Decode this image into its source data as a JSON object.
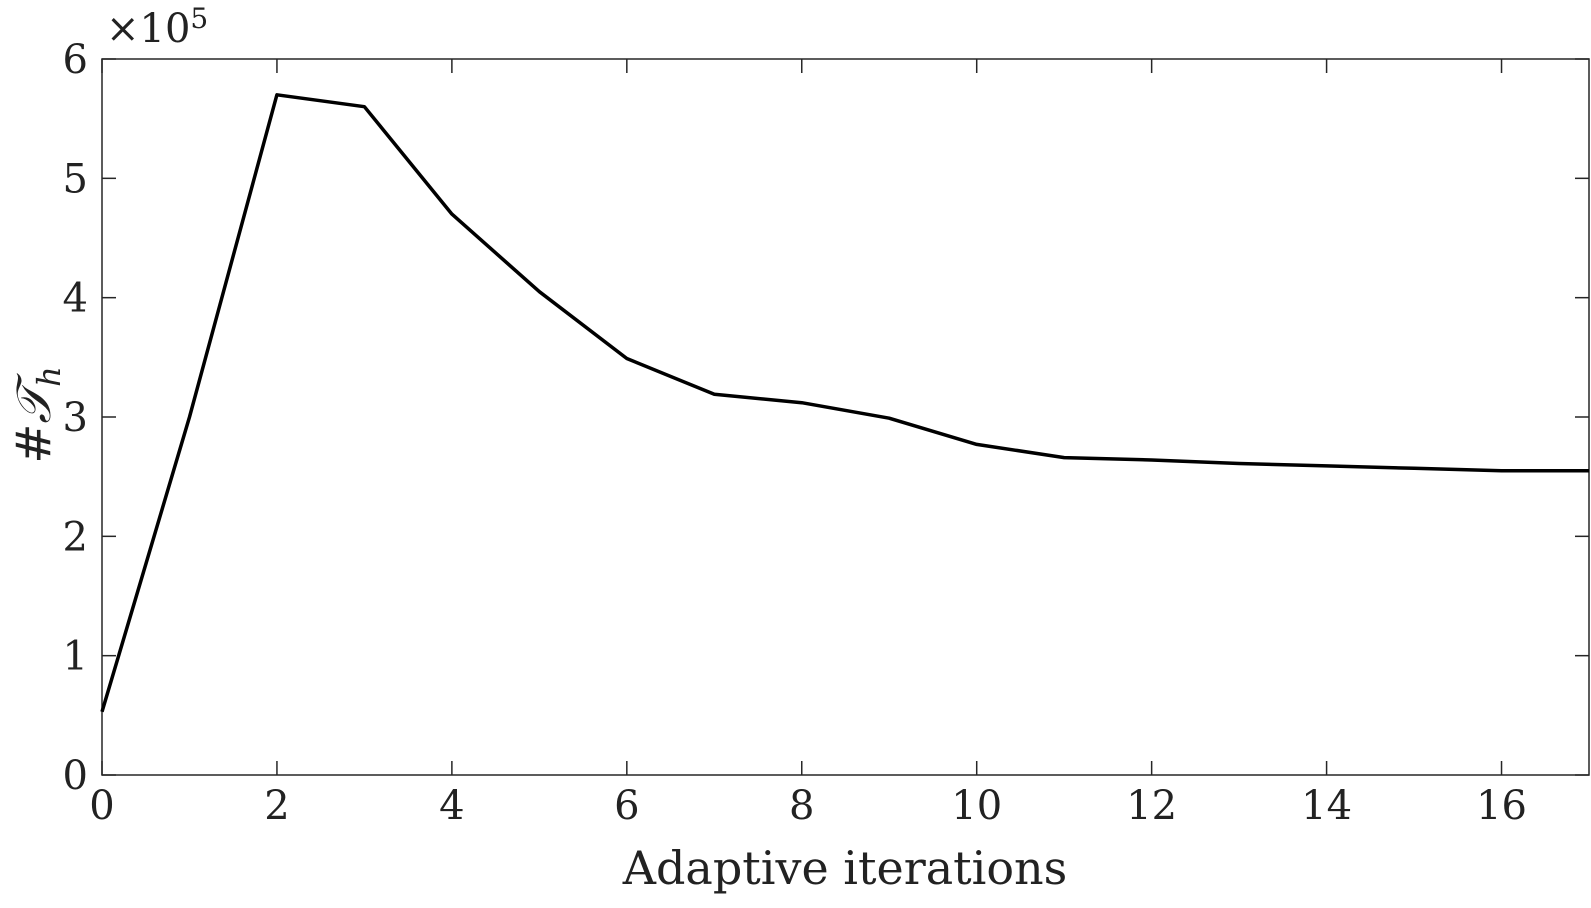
{
  "chart_data": {
    "type": "line",
    "xlabel": "Adaptive iterations",
    "ylabel": {
      "main": "#𝒯",
      "sub": "h"
    },
    "exponent": {
      "base": "×10",
      "power": "5"
    },
    "xlim": [
      0,
      17
    ],
    "ylim": [
      0,
      6
    ],
    "xticks": [
      0,
      2,
      4,
      6,
      8,
      10,
      12,
      14,
      16
    ],
    "yticks": [
      0,
      1,
      2,
      3,
      4,
      5,
      6
    ],
    "grid": false,
    "series": [
      {
        "color": "#000000",
        "x": [
          0,
          1,
          2,
          3,
          4,
          5,
          6,
          7,
          8,
          9,
          10,
          11,
          12,
          13,
          14,
          15,
          16,
          17
        ],
        "y": [
          0.53,
          3.0,
          5.7,
          5.6,
          4.7,
          4.05,
          3.49,
          3.19,
          3.12,
          2.99,
          2.77,
          2.66,
          2.64,
          2.61,
          2.59,
          2.57,
          2.55,
          2.55
        ]
      }
    ]
  }
}
